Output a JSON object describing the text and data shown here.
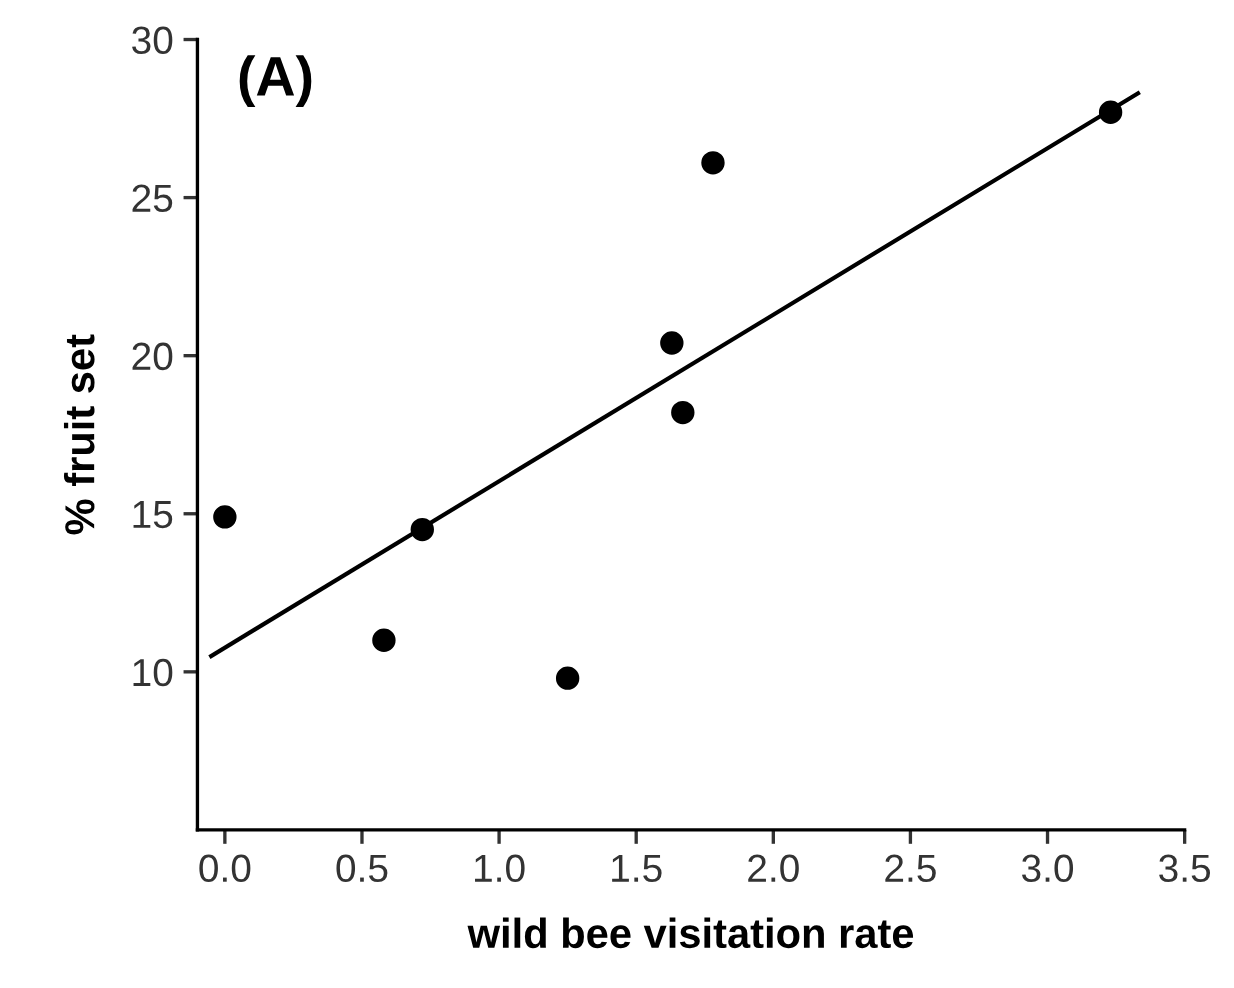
{
  "chart_data": {
    "type": "scatter",
    "xlabel": "wild bee visitation rate",
    "ylabel": "% fruit set",
    "annotations": [
      "(A)"
    ],
    "series": [
      {
        "marker": "circle",
        "color": "#000000",
        "x": [
          0.0,
          0.58,
          0.72,
          1.25,
          1.63,
          1.67,
          1.78,
          3.23
        ],
        "values": [
          14.9,
          11.0,
          14.5,
          9.8,
          20.4,
          18.2,
          26.1,
          27.7
        ]
      },
      {
        "type": "line",
        "marker": "none",
        "color": "#000000",
        "x": [
          -0.05,
          3.33
        ],
        "values": [
          10.5,
          28.3
        ]
      }
    ],
    "xlim": [
      -0.1,
      3.5
    ],
    "xticks": [
      {
        "value": 0,
        "label": "0.0"
      },
      {
        "value": 0.5,
        "label": "0.5"
      },
      {
        "value": 1,
        "label": "1.0"
      },
      {
        "value": 1.5,
        "label": "1.5"
      },
      {
        "value": 2,
        "label": "2.0"
      },
      {
        "value": 2.5,
        "label": "2.5"
      },
      {
        "value": 3,
        "label": "3.0"
      },
      {
        "value": 3.5,
        "label": "3.5"
      }
    ],
    "ylim": [
      5,
      30
    ],
    "yticks": [
      10,
      15,
      20,
      25,
      30
    ],
    "grid": false,
    "legend": false
  }
}
